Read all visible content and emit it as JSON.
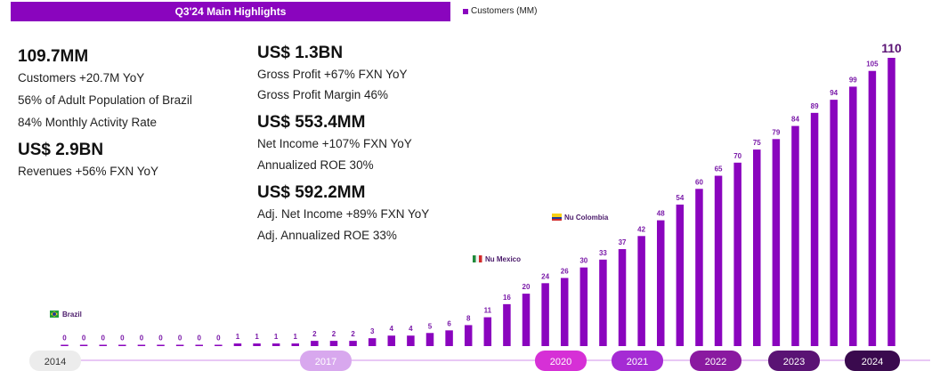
{
  "header": {
    "title": "Q3'24 Main Highlights",
    "legend_label": "Customers (MM)"
  },
  "highlights": {
    "customers": {
      "value": "109.7MM",
      "lines": [
        "Customers +20.7M YoY",
        "56% of Adult Population of Brazil",
        "84% Monthly Activity Rate"
      ]
    },
    "revenues": {
      "value": "US$ 2.9BN",
      "lines": [
        "Revenues +56%  FXN YoY"
      ]
    },
    "gross_profit": {
      "value": "US$ 1.3BN",
      "lines": [
        "Gross Profit +67%  FXN YoY",
        "Gross Profit Margin 46%"
      ]
    },
    "net_income": {
      "value": "US$ 553.4MM",
      "lines": [
        "Net Income +107% FXN YoY",
        "Annualized ROE 30%"
      ]
    },
    "adj_net_income": {
      "value": "US$ 592.2MM",
      "lines": [
        "Adj. Net Income +89% FXN YoY",
        "Adj. Annualized ROE 33%"
      ]
    }
  },
  "chart_data": {
    "type": "bar",
    "series": [
      {
        "name": "Customers (MM)",
        "values": [
          0,
          0,
          0,
          0,
          0,
          0,
          0,
          0,
          0,
          1,
          1,
          1,
          1,
          2,
          2,
          2,
          3,
          4,
          4,
          5,
          6,
          8,
          11,
          16,
          20,
          24,
          26,
          30,
          33,
          37,
          42,
          48,
          54,
          60,
          65,
          70,
          75,
          79,
          84,
          89,
          94,
          99,
          105,
          110
        ]
      }
    ],
    "timeline_labels": [
      "2014",
      "2017",
      "2020",
      "2021",
      "2022",
      "2023",
      "2024"
    ],
    "milestones": [
      "Brazil",
      "Nu Mexico",
      "Nu Colombia"
    ],
    "color": "#8a05be",
    "timeline_colors": {
      "2014": "#ececec",
      "2017": "#d8a8ee",
      "2020": "#d630d6",
      "2021": "#a52bd4",
      "2022": "#8a1aa0",
      "2023": "#5a1374",
      "2024": "#3a0a4e"
    }
  }
}
